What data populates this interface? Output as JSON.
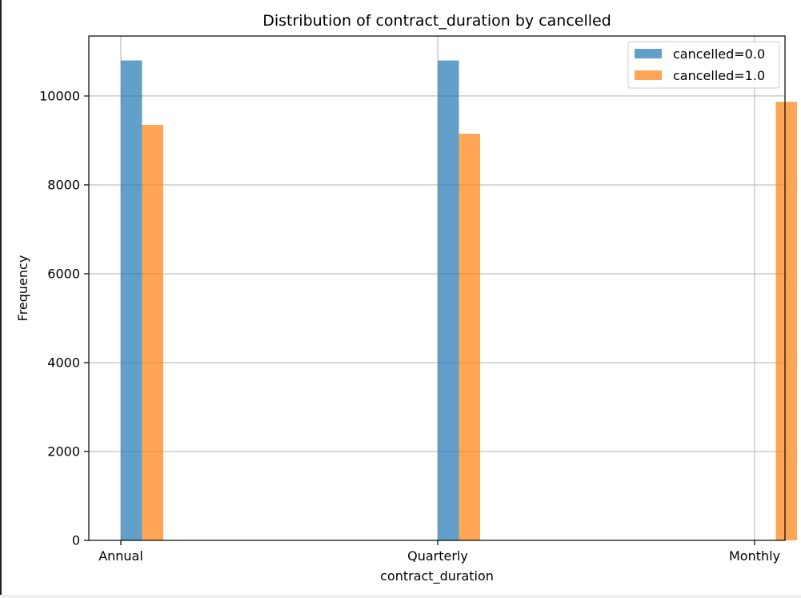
{
  "chart_data": {
    "type": "bar",
    "title": "Distribution of contract_duration by cancelled",
    "xlabel": "contract_duration",
    "ylabel": "Frequency",
    "categories": [
      "Annual",
      "Quarterly",
      "Monthly"
    ],
    "ylim": [
      0,
      11350
    ],
    "y_ticks": [
      0,
      2000,
      4000,
      6000,
      8000,
      10000
    ],
    "grid": true,
    "legend_position": "top-right",
    "series": [
      {
        "name": "cancelled=0.0",
        "color": "#1f77b4",
        "opacity": 0.7,
        "values": [
          10800,
          10800,
          0
        ]
      },
      {
        "name": "cancelled=1.0",
        "color": "#ff7f0e",
        "opacity": 0.7,
        "values": [
          9350,
          9150,
          9870
        ]
      }
    ]
  }
}
